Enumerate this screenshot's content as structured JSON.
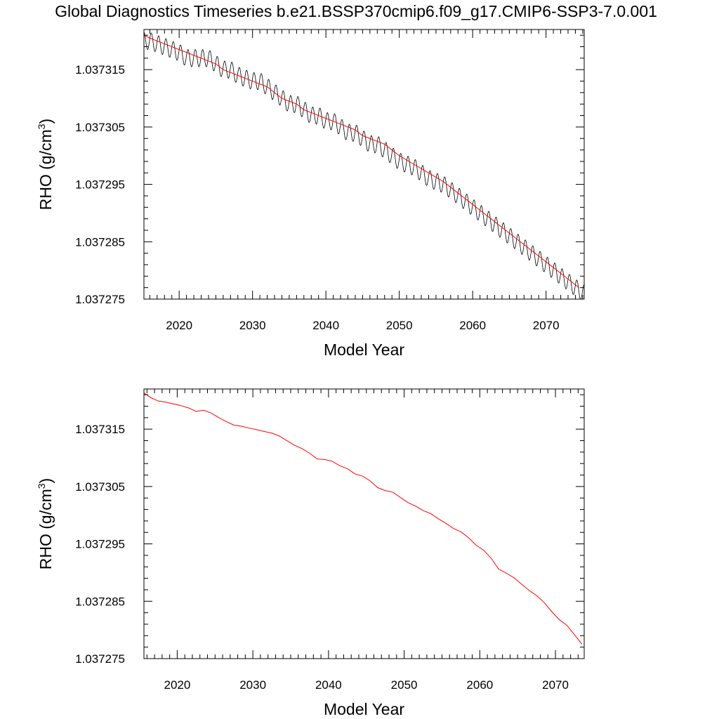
{
  "title": "Global Diagnostics Timeseries b.e21.BSSP370cmip6.f09_g17.CMIP6-SSP3-7.0.001",
  "colors": {
    "raw": "#000000",
    "smooth": "#ff0000",
    "axis": "#000000"
  },
  "chart_data": [
    {
      "type": "line",
      "xlabel": "Model Year",
      "ylabel": "RHO (g/cm",
      "ylabel_sup": "3",
      "ylabel_close": ")",
      "xlim": [
        2015.2,
        2075.2
      ],
      "ylim": [
        1.037275,
        1.037322
      ],
      "xticks": [
        "2020",
        "2030",
        "2040",
        "2050",
        "2060",
        "2070"
      ],
      "yticks": [
        "1.037275",
        "1.037285",
        "1.037295",
        "1.037305",
        "1.037315"
      ],
      "series": [
        {
          "kind": "monthly",
          "seasonal_amplitude": 1.5e-06,
          "x": [
            2015.2,
            2016,
            2018,
            2020,
            2021,
            2022,
            2023,
            2024,
            2025,
            2026,
            2027,
            2028,
            2030,
            2031,
            2032,
            2033,
            2034,
            2035,
            2036,
            2037,
            2038,
            2039,
            2040,
            2041,
            2042,
            2043,
            2044,
            2045,
            2046,
            2047,
            2048,
            2049,
            2050,
            2052,
            2054,
            2056,
            2057,
            2058,
            2059,
            2060,
            2061,
            2062,
            2063,
            2064,
            2065,
            2066,
            2067,
            2068,
            2069,
            2070,
            2071,
            2072,
            2073,
            2074,
            2075.2
          ],
          "y": [
            1.03732,
            1.03732,
            1.037319,
            1.037318,
            1.037317,
            1.037317,
            1.037317,
            1.037317,
            1.037316,
            1.037315,
            1.037315,
            1.037314,
            1.037313,
            1.037313,
            1.037312,
            1.037311,
            1.03731,
            1.037309,
            1.037309,
            1.037308,
            1.037307,
            1.037307,
            1.037306,
            1.037306,
            1.037305,
            1.037304,
            1.037304,
            1.037303,
            1.037302,
            1.037302,
            1.037301,
            1.0373,
            1.037299,
            1.037298,
            1.037296,
            1.037295,
            1.037294,
            1.037293,
            1.037292,
            1.037291,
            1.03729,
            1.037289,
            1.037288,
            1.037287,
            1.037286,
            1.037285,
            1.037284,
            1.037283,
            1.037282,
            1.037281,
            1.03728,
            1.037279,
            1.037278,
            1.037277,
            1.037276
          ]
        },
        {
          "kind": "annual",
          "x": [
            2015.2,
            2016,
            2018,
            2020,
            2021,
            2022,
            2023,
            2024,
            2025,
            2026,
            2027,
            2028,
            2030,
            2031,
            2032,
            2033,
            2034,
            2035,
            2036,
            2037,
            2038,
            2039,
            2040,
            2041,
            2042,
            2043,
            2044,
            2045,
            2046,
            2047,
            2048,
            2049,
            2050,
            2052,
            2054,
            2056,
            2057,
            2058,
            2059,
            2060,
            2061,
            2062,
            2063,
            2064,
            2065,
            2066,
            2067,
            2068,
            2069,
            2070,
            2071,
            2072,
            2073,
            2074.5
          ],
          "y": [
            1.037321,
            1.0373205,
            1.0373195,
            1.0373185,
            1.037318,
            1.0373175,
            1.037317,
            1.0373165,
            1.037316,
            1.037315,
            1.0373145,
            1.037314,
            1.037313,
            1.0373125,
            1.037312,
            1.037311,
            1.03731,
            1.0373095,
            1.037309,
            1.037308,
            1.0373075,
            1.037307,
            1.0373065,
            1.037306,
            1.0373055,
            1.037305,
            1.0373045,
            1.0373035,
            1.037303,
            1.0373025,
            1.037302,
            1.037301,
            1.0373,
            1.0372985,
            1.037297,
            1.0372955,
            1.0372945,
            1.0372935,
            1.0372925,
            1.0372915,
            1.0372905,
            1.0372895,
            1.0372885,
            1.0372875,
            1.0372865,
            1.0372855,
            1.0372845,
            1.0372835,
            1.0372825,
            1.0372815,
            1.0372805,
            1.0372795,
            1.0372785,
            1.037277
          ]
        }
      ]
    },
    {
      "type": "line",
      "xlabel": "Model Year",
      "ylabel": "RHO (g/cm",
      "ylabel_sup": "3",
      "ylabel_close": ")",
      "xlim": [
        2015.6,
        2073.8
      ],
      "ylim": [
        1.037275,
        1.037322
      ],
      "xticks": [
        "2020",
        "2030",
        "2040",
        "2050",
        "2060",
        "2070"
      ],
      "yticks": [
        "1.037275",
        "1.037285",
        "1.037295",
        "1.037305",
        "1.037315"
      ],
      "series": [
        {
          "kind": "annual",
          "x": [
            2015.6,
            2016.5,
            2017.5,
            2018.5,
            2019.5,
            2020.5,
            2021.5,
            2022.5,
            2023.5,
            2024.5,
            2025.5,
            2026.5,
            2027.5,
            2028.5,
            2029.5,
            2030.5,
            2031.5,
            2032.5,
            2033.5,
            2034.5,
            2035.5,
            2036.5,
            2037.5,
            2038.5,
            2039.5,
            2040.5,
            2041.5,
            2042.5,
            2043.5,
            2044.5,
            2045.5,
            2046.5,
            2047.5,
            2048.5,
            2049.5,
            2050.5,
            2051.5,
            2052.5,
            2053.5,
            2054.5,
            2055.5,
            2056.5,
            2057.5,
            2058.5,
            2059.5,
            2060.5,
            2061.5,
            2062.5,
            2063.5,
            2064.5,
            2065.5,
            2066.5,
            2067.5,
            2068.5,
            2069.5,
            2070.5,
            2071.5,
            2072.5,
            2073.5
          ],
          "y": [
            1.0373213,
            1.0373205,
            1.0373199,
            1.0373197,
            1.0373194,
            1.0373191,
            1.0373187,
            1.0373181,
            1.0373183,
            1.0373178,
            1.037317,
            1.0373163,
            1.0373157,
            1.0373155,
            1.0373152,
            1.0373149,
            1.0373146,
            1.0373143,
            1.0373138,
            1.037313,
            1.0373122,
            1.0373116,
            1.0373108,
            1.0373098,
            1.0373097,
            1.0373094,
            1.0373086,
            1.0373081,
            1.0373072,
            1.0373068,
            1.037306,
            1.0373048,
            1.0373043,
            1.037304,
            1.0373031,
            1.0373022,
            1.0373016,
            1.0373008,
            1.0373003,
            1.0372994,
            1.0372986,
            1.0372977,
            1.0372971,
            1.0372961,
            1.0372948,
            1.0372939,
            1.0372925,
            1.0372906,
            1.0372899,
            1.0372891,
            1.037288,
            1.0372869,
            1.037286,
            1.0372848,
            1.0372832,
            1.0372818,
            1.0372808,
            1.0372792,
            1.0372775
          ]
        }
      ]
    }
  ]
}
